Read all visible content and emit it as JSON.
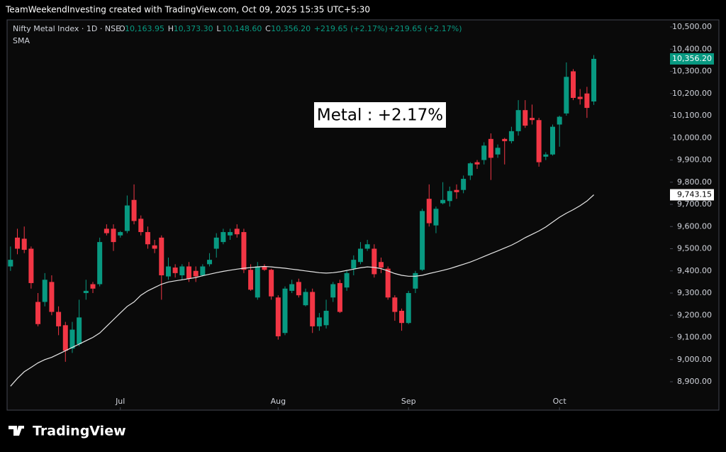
{
  "header": {
    "credit": "TeamWeekendInvesting created with TradingView.com, Oct 09, 2025 15:35 UTC+5:30"
  },
  "logo": "TradingView",
  "chart_data": {
    "type": "candlestick",
    "symbol": "Nifty Metal Index · 1D · NSE",
    "ohlc_legend": [
      {
        "key": "O",
        "value": "10,163.95"
      },
      {
        "key": "H",
        "value": "10,373.30"
      },
      {
        "key": "L",
        "value": "10,148.60"
      },
      {
        "key": "C",
        "value": "10,356.20"
      }
    ],
    "change": [
      "+219.65 (+2.17%)",
      "+219.65 (+2.17%)"
    ],
    "annotation": "Metal : +2.17%",
    "up_color": "#089981",
    "down_color": "#f23645",
    "open": [
      9420,
      9550,
      9545,
      9500,
      9260,
      9260,
      9350,
      9215,
      9155,
      9050,
      9070,
      9300,
      9340,
      9340,
      9590,
      9590,
      9560,
      9580,
      9720,
      9635,
      9575,
      9515,
      9550,
      9375,
      9415,
      9380,
      9420,
      9400,
      9380,
      9430,
      9500,
      9530,
      9560,
      9590,
      9575,
      9405,
      9280,
      9420,
      9405,
      9280,
      9120,
      9310,
      9350,
      9245,
      9305,
      9150,
      9155,
      9280,
      9345,
      9325,
      9410,
      9440,
      9500,
      9500,
      9440,
      9410,
      9280,
      9220,
      9165,
      9320,
      9405,
      9725,
      9605,
      9705,
      9715,
      9765,
      9765,
      9830,
      9890,
      9900,
      9995,
      9925,
      9995,
      9985,
      10030,
      10125,
      10090,
      10080,
      9915,
      9925,
      10060,
      10110,
      10300,
      10185,
      10200,
      10163.95
    ],
    "high": [
      9510,
      9590,
      9600,
      9510,
      9300,
      9390,
      9380,
      9240,
      9170,
      9170,
      9270,
      9360,
      9350,
      9550,
      9610,
      9610,
      9580,
      9740,
      9790,
      9650,
      9600,
      9540,
      9560,
      9460,
      9430,
      9430,
      9440,
      9420,
      9430,
      9480,
      9570,
      9590,
      9590,
      9610,
      9590,
      9430,
      9440,
      9430,
      9410,
      9290,
      9330,
      9360,
      9365,
      9320,
      9320,
      9210,
      9270,
      9350,
      9360,
      9400,
      9470,
      9530,
      9540,
      9520,
      9460,
      9420,
      9290,
      9230,
      9310,
      9400,
      9680,
      9790,
      9690,
      9800,
      9780,
      9790,
      9830,
      9890,
      9900,
      9980,
      10020,
      9970,
      10000,
      10050,
      10170,
      10170,
      10150,
      10090,
      9935,
      10060,
      10100,
      10340,
      10310,
      10220,
      10230,
      10373.3
    ],
    "low": [
      9400,
      9475,
      9480,
      9320,
      9150,
      9240,
      9200,
      9110,
      8990,
      9030,
      9060,
      9270,
      9300,
      9330,
      9560,
      9490,
      9550,
      9570,
      9610,
      9560,
      9500,
      9480,
      9270,
      9360,
      9370,
      9360,
      9350,
      9350,
      9375,
      9420,
      9460,
      9520,
      9540,
      9550,
      9390,
      9310,
      9270,
      9400,
      9270,
      9090,
      9110,
      9300,
      9280,
      9240,
      9120,
      9130,
      9140,
      9260,
      9210,
      9310,
      9380,
      9430,
      9490,
      9370,
      9390,
      9270,
      9175,
      9130,
      9160,
      9300,
      9400,
      9600,
      9570,
      9700,
      9690,
      9725,
      9750,
      9810,
      9860,
      9880,
      9810,
      9910,
      9880,
      9975,
      10010,
      10045,
      10060,
      9870,
      9900,
      9920,
      9960,
      10100,
      10170,
      10150,
      10090,
      10148.6
    ],
    "close": [
      9450,
      9500,
      9495,
      9345,
      9160,
      9360,
      9215,
      9150,
      9040,
      9135,
      9190,
      9310,
      9320,
      9530,
      9570,
      9530,
      9575,
      9695,
      9625,
      9575,
      9520,
      9500,
      9380,
      9420,
      9390,
      9420,
      9365,
      9375,
      9420,
      9450,
      9550,
      9575,
      9575,
      9565,
      9405,
      9315,
      9420,
      9405,
      9285,
      9105,
      9320,
      9340,
      9290,
      9305,
      9150,
      9190,
      9220,
      9340,
      9215,
      9390,
      9450,
      9500,
      9520,
      9385,
      9415,
      9280,
      9215,
      9165,
      9300,
      9390,
      9670,
      9615,
      9680,
      9720,
      9760,
      9755,
      9815,
      9885,
      9880,
      9965,
      9910,
      9955,
      9985,
      10030,
      10125,
      10055,
      10080,
      9890,
      9925,
      10050,
      10095,
      10275,
      10180,
      10175,
      10135,
      10356.2
    ],
    "sma": {
      "name": "SMA",
      "color": "#e6e6e6",
      "values": [
        8880,
        8915,
        8945,
        8965,
        8985,
        9000,
        9010,
        9025,
        9040,
        9055,
        9070,
        9085,
        9100,
        9120,
        9150,
        9180,
        9210,
        9240,
        9260,
        9290,
        9310,
        9325,
        9340,
        9350,
        9355,
        9360,
        9365,
        9370,
        9378,
        9385,
        9392,
        9398,
        9403,
        9408,
        9412,
        9415,
        9418,
        9420,
        9418,
        9415,
        9412,
        9408,
        9404,
        9400,
        9396,
        9392,
        9390,
        9392,
        9396,
        9402,
        9408,
        9414,
        9418,
        9416,
        9410,
        9400,
        9388,
        9380,
        9376,
        9376,
        9380,
        9388,
        9395,
        9402,
        9410,
        9420,
        9430,
        9440,
        9452,
        9465,
        9478,
        9490,
        9503,
        9516,
        9532,
        9550,
        9565,
        9580,
        9598,
        9620,
        9642,
        9660,
        9676,
        9694,
        9715,
        9743.15
      ]
    },
    "last_price": {
      "value": 10356.2,
      "label": "10,356.20"
    },
    "sma_price": {
      "value": 9743.15,
      "label": "9,743.15"
    },
    "xlim": [
      -0.5,
      96.1
    ],
    "xticks": [
      {
        "value": 16,
        "label": "Jul"
      },
      {
        "value": 39,
        "label": "Aug"
      },
      {
        "value": 58,
        "label": "Sep"
      },
      {
        "value": 80,
        "label": "Oct"
      }
    ],
    "ylim": [
      8772,
      10532
    ],
    "yticks": [
      {
        "value": 8900,
        "label": "8,900.00"
      },
      {
        "value": 9000,
        "label": "9,000.00"
      },
      {
        "value": 9100,
        "label": "9,100.00"
      },
      {
        "value": 9200,
        "label": "9,200.00"
      },
      {
        "value": 9300,
        "label": "9,300.00"
      },
      {
        "value": 9400,
        "label": "9,400.00"
      },
      {
        "value": 9500,
        "label": "9,500.00"
      },
      {
        "value": 9600,
        "label": "9,600.00"
      },
      {
        "value": 9700,
        "label": "9,700.00"
      },
      {
        "value": 9800,
        "label": "9,800.00"
      },
      {
        "value": 9900,
        "label": "9,900.00"
      },
      {
        "value": 10000,
        "label": "10,000.00"
      },
      {
        "value": 10100,
        "label": "10,100.00"
      },
      {
        "value": 10200,
        "label": "10,200.00"
      },
      {
        "value": 10300,
        "label": "10,300.00"
      },
      {
        "value": 10400,
        "label": "10,400.00"
      },
      {
        "value": 10500,
        "label": "10,500.00"
      }
    ]
  }
}
